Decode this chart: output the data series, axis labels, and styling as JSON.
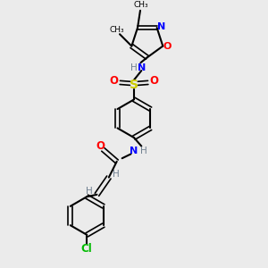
{
  "background_color": "#ebebeb",
  "bond_color": "#000000",
  "atom_colors": {
    "N": "#0000ff",
    "O": "#ff0000",
    "S": "#cccc00",
    "Cl": "#00bb00",
    "C": "#000000",
    "H": "#708090"
  },
  "figsize": [
    3.0,
    3.0
  ],
  "dpi": 100
}
